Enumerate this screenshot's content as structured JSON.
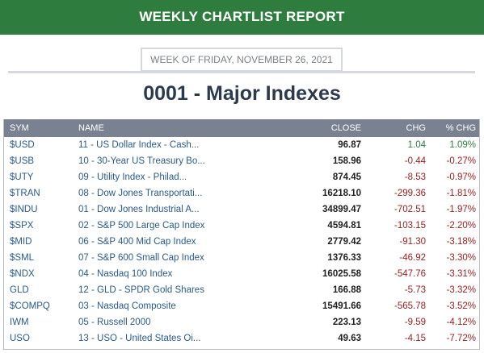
{
  "banner": {
    "title": "WEEKLY CHARTLIST REPORT"
  },
  "week_label": "WEEK OF FRIDAY, NOVEMBER 26, 2021",
  "page_title": "0001 - Major Indexes",
  "table": {
    "headers": {
      "sym": "SYM",
      "name": "NAME",
      "close": "CLOSE",
      "chg": "CHG",
      "pct": "% CHG"
    },
    "rows": [
      {
        "sym": "$USD",
        "name": "11 - US Dollar Index - Cash...",
        "close": "96.87",
        "chg": "1.04",
        "pct": "1.09%",
        "dir": "pos"
      },
      {
        "sym": "$USB",
        "name": "10 - 30-Year US Treasury Bo...",
        "close": "158.96",
        "chg": "-0.44",
        "pct": "-0.27%",
        "dir": "neg"
      },
      {
        "sym": "$UTY",
        "name": "09 - Utility Index - Philad...",
        "close": "874.45",
        "chg": "-8.53",
        "pct": "-0.97%",
        "dir": "neg"
      },
      {
        "sym": "$TRAN",
        "name": "08 - Dow Jones Transportati...",
        "close": "16218.10",
        "chg": "-299.36",
        "pct": "-1.81%",
        "dir": "neg"
      },
      {
        "sym": "$INDU",
        "name": "01 - Dow Jones Industrial A...",
        "close": "34899.47",
        "chg": "-702.51",
        "pct": "-1.97%",
        "dir": "neg"
      },
      {
        "sym": "$SPX",
        "name": "02 - S&P 500 Large Cap Index",
        "close": "4594.81",
        "chg": "-103.15",
        "pct": "-2.20%",
        "dir": "neg"
      },
      {
        "sym": "$MID",
        "name": "06 - S&P 400 Mid Cap Index",
        "close": "2779.42",
        "chg": "-91.30",
        "pct": "-3.18%",
        "dir": "neg"
      },
      {
        "sym": "$SML",
        "name": "07 - S&P 600 Small Cap Index",
        "close": "1376.33",
        "chg": "-46.92",
        "pct": "-3.30%",
        "dir": "neg"
      },
      {
        "sym": "$NDX",
        "name": "04 - Nasdaq 100 Index",
        "close": "16025.58",
        "chg": "-547.76",
        "pct": "-3.31%",
        "dir": "neg"
      },
      {
        "sym": "GLD",
        "name": "12 - GLD - SPDR Gold Shares",
        "close": "166.88",
        "chg": "-5.73",
        "pct": "-3.32%",
        "dir": "neg"
      },
      {
        "sym": "$COMPQ",
        "name": "03 - Nasdaq Composite",
        "close": "15491.66",
        "chg": "-565.78",
        "pct": "-3.52%",
        "dir": "neg"
      },
      {
        "sym": "IWM",
        "name": "05 - Russell 2000",
        "close": "223.13",
        "chg": "-9.59",
        "pct": "-4.12%",
        "dir": "neg"
      },
      {
        "sym": "USO",
        "name": "13 - USO - United States Oi...",
        "close": "49.63",
        "chg": "-4.15",
        "pct": "-7.72%",
        "dir": "neg"
      }
    ]
  },
  "colors": {
    "banner": "#2e7d3f",
    "header": "#7a8291",
    "negative": "#9b1c1c",
    "positive": "#2e7d3f",
    "link": "#2a5a8a"
  }
}
